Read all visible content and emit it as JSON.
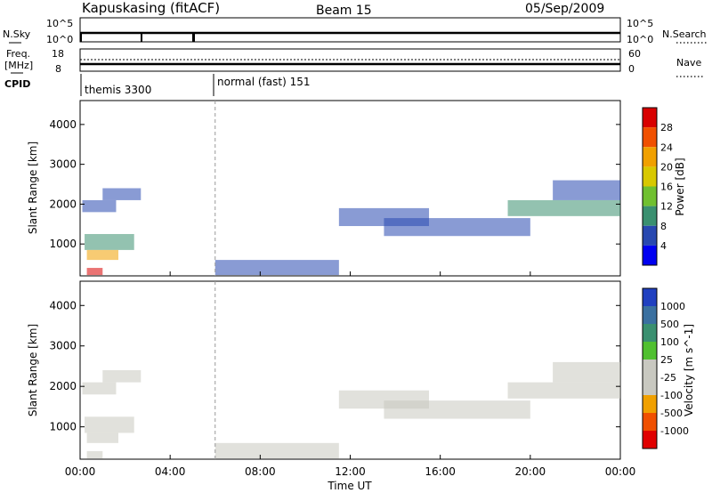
{
  "header": {
    "station": "Kapuskasing (fitACF)",
    "beam": "Beam 15",
    "date": "05/Sep/2009"
  },
  "strips": {
    "nsky_label": "N.Sky",
    "nsearch_label": "N.Search",
    "nsky_ticks": [
      "10^5",
      "10^0"
    ],
    "nsearch_ticks": [
      "10^5",
      "10^0"
    ],
    "freq_label_1": "Freq.",
    "freq_label_2": "[MHz]",
    "freq_ticks": [
      "18",
      "8"
    ],
    "nave_label": "Nave",
    "nave_ticks": [
      "60",
      "0"
    ],
    "cpid_label": "CPID",
    "cpid_segments": [
      {
        "label": "themis 3300",
        "start_hour": 0
      },
      {
        "label": "normal (fast) 151",
        "start_hour": 6
      }
    ]
  },
  "chart_data": [
    {
      "type": "heatmap",
      "name": "power",
      "ylabel": "Slant Range [km]",
      "xlabel": "Time UT",
      "x_ticks": [
        "00:00",
        "04:00",
        "08:00",
        "12:00",
        "16:00",
        "20:00",
        "00:00"
      ],
      "x_tick_hours": [
        0,
        4,
        8,
        12,
        16,
        20,
        24
      ],
      "xlim": [
        0,
        24
      ],
      "y_ticks": [
        1000,
        2000,
        3000,
        4000
      ],
      "ylim": [
        200,
        4600
      ],
      "colorbar": {
        "label": "Power [dB]",
        "ticks": [
          "28",
          "24",
          "20",
          "16",
          "12",
          "8",
          "4"
        ],
        "colors": [
          "#d80000",
          "#f05000",
          "#f0a000",
          "#d8c800",
          "#70c030",
          "#3a9070",
          "#2848b0",
          "#0000f0"
        ]
      },
      "bands": [
        {
          "t0": 0.1,
          "t1": 1.6,
          "r0": 1800,
          "r1": 2100,
          "color": "#2848b0"
        },
        {
          "t0": 1.0,
          "t1": 2.7,
          "r0": 2100,
          "r1": 2400,
          "color": "#2848b0"
        },
        {
          "t0": 0.2,
          "t1": 2.4,
          "r0": 850,
          "r1": 1250,
          "color": "#3a9070"
        },
        {
          "t0": 0.3,
          "t1": 1.7,
          "r0": 600,
          "r1": 850,
          "color": "#f0a000"
        },
        {
          "t0": 0.3,
          "t1": 1.0,
          "r0": 220,
          "r1": 400,
          "color": "#d80000"
        },
        {
          "t0": 11.5,
          "t1": 15.5,
          "r0": 1450,
          "r1": 1900,
          "color": "#2848b0"
        },
        {
          "t0": 13.5,
          "t1": 20.0,
          "r0": 1200,
          "r1": 1650,
          "color": "#2848b0"
        },
        {
          "t0": 19.0,
          "t1": 24.0,
          "r0": 1700,
          "r1": 2100,
          "color": "#3a9070"
        },
        {
          "t0": 21.0,
          "t1": 24.0,
          "r0": 2100,
          "r1": 2600,
          "color": "#2848b0"
        },
        {
          "t0": 6.0,
          "t1": 11.5,
          "r0": 220,
          "r1": 600,
          "color": "#2848b0"
        }
      ]
    },
    {
      "type": "heatmap",
      "name": "velocity",
      "ylabel": "Slant Range [km]",
      "xlabel": "Time UT",
      "x_ticks": [
        "00:00",
        "04:00",
        "08:00",
        "12:00",
        "16:00",
        "20:00",
        "00:00"
      ],
      "x_tick_hours": [
        0,
        4,
        8,
        12,
        16,
        20,
        24
      ],
      "xlim": [
        0,
        24
      ],
      "y_ticks": [
        1000,
        2000,
        3000,
        4000
      ],
      "ylim": [
        200,
        4600
      ],
      "colorbar": {
        "label": "Velocity [m s^-1]",
        "ticks": [
          "1000",
          "500",
          "100",
          "25",
          "-25",
          "-100",
          "-500",
          "-1000"
        ],
        "colors": [
          "#2040c0",
          "#3a70a0",
          "#3a9070",
          "#50c030",
          "#c8c8c0",
          "#c8c8c0",
          "#f0a000",
          "#f05000",
          "#e00000"
        ]
      },
      "bands": [
        {
          "t0": 0.1,
          "t1": 1.6,
          "r0": 1800,
          "r1": 2100,
          "color": "#c8c8c0"
        },
        {
          "t0": 1.0,
          "t1": 2.7,
          "r0": 2100,
          "r1": 2400,
          "color": "#c8c8c0"
        },
        {
          "t0": 0.2,
          "t1": 2.4,
          "r0": 850,
          "r1": 1250,
          "color": "#c8c8c0"
        },
        {
          "t0": 0.3,
          "t1": 1.7,
          "r0": 600,
          "r1": 850,
          "color": "#c8c8c0"
        },
        {
          "t0": 0.3,
          "t1": 1.0,
          "r0": 220,
          "r1": 400,
          "color": "#c8c8c0"
        },
        {
          "t0": 11.5,
          "t1": 15.5,
          "r0": 1450,
          "r1": 1900,
          "color": "#c8c8c0"
        },
        {
          "t0": 13.5,
          "t1": 20.0,
          "r0": 1200,
          "r1": 1650,
          "color": "#c8c8c0"
        },
        {
          "t0": 19.0,
          "t1": 24.0,
          "r0": 1700,
          "r1": 2100,
          "color": "#c8c8c0"
        },
        {
          "t0": 21.0,
          "t1": 24.0,
          "r0": 2100,
          "r1": 2600,
          "color": "#c8c8c0"
        },
        {
          "t0": 6.0,
          "t1": 11.5,
          "r0": 220,
          "r1": 600,
          "color": "#c8c8c0"
        }
      ]
    }
  ]
}
